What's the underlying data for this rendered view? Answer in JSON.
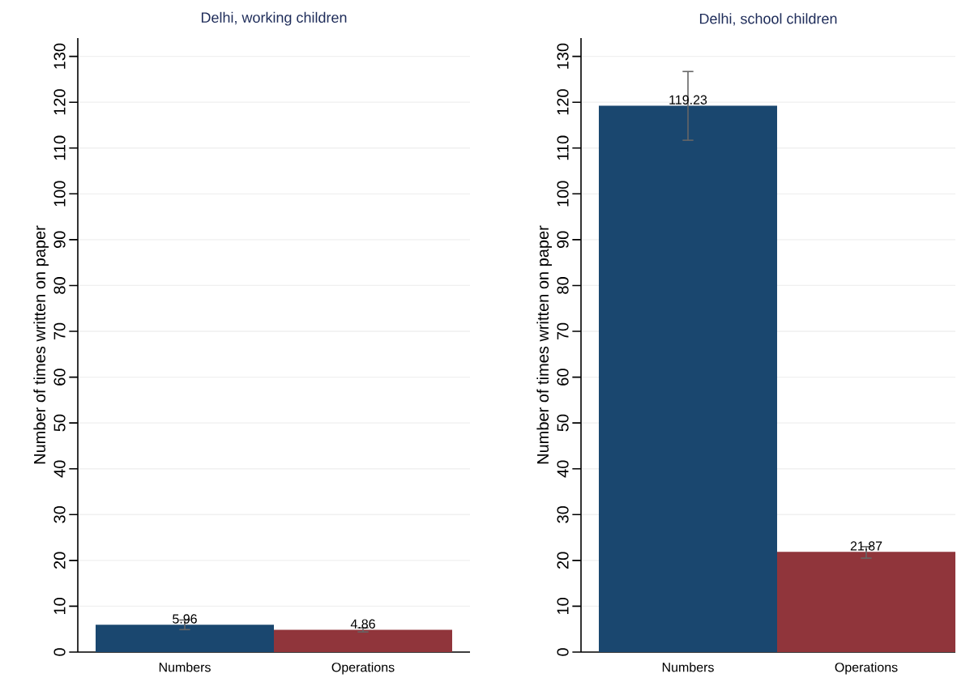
{
  "chart_data": [
    {
      "type": "bar",
      "title": "Delhi, working children",
      "ylabel": "Number of times written on paper",
      "categories": [
        "Numbers",
        "Operations"
      ],
      "values": [
        5.96,
        4.86
      ],
      "colors": [
        "#1a476f",
        "#90353b"
      ],
      "errors": [
        [
          4.9,
          7.0
        ],
        [
          4.4,
          5.3
        ]
      ],
      "data_labels": true,
      "ylim": [
        0,
        134
      ],
      "yticks": [
        0,
        10,
        20,
        30,
        40,
        50,
        60,
        70,
        80,
        90,
        100,
        110,
        120,
        130
      ],
      "grid": "y"
    },
    {
      "type": "bar",
      "title": "Delhi, school children",
      "ylabel": "Number of times written on paper",
      "categories": [
        "Numbers",
        "Operations"
      ],
      "values": [
        119.23,
        21.87
      ],
      "colors": [
        "#1a476f",
        "#90353b"
      ],
      "errors": [
        [
          111.7,
          126.7
        ],
        [
          20.5,
          23.0
        ]
      ],
      "data_labels": true,
      "ylim": [
        0,
        134
      ],
      "yticks": [
        0,
        10,
        20,
        30,
        40,
        50,
        60,
        70,
        80,
        90,
        100,
        110,
        120,
        130
      ],
      "grid": "y"
    }
  ]
}
